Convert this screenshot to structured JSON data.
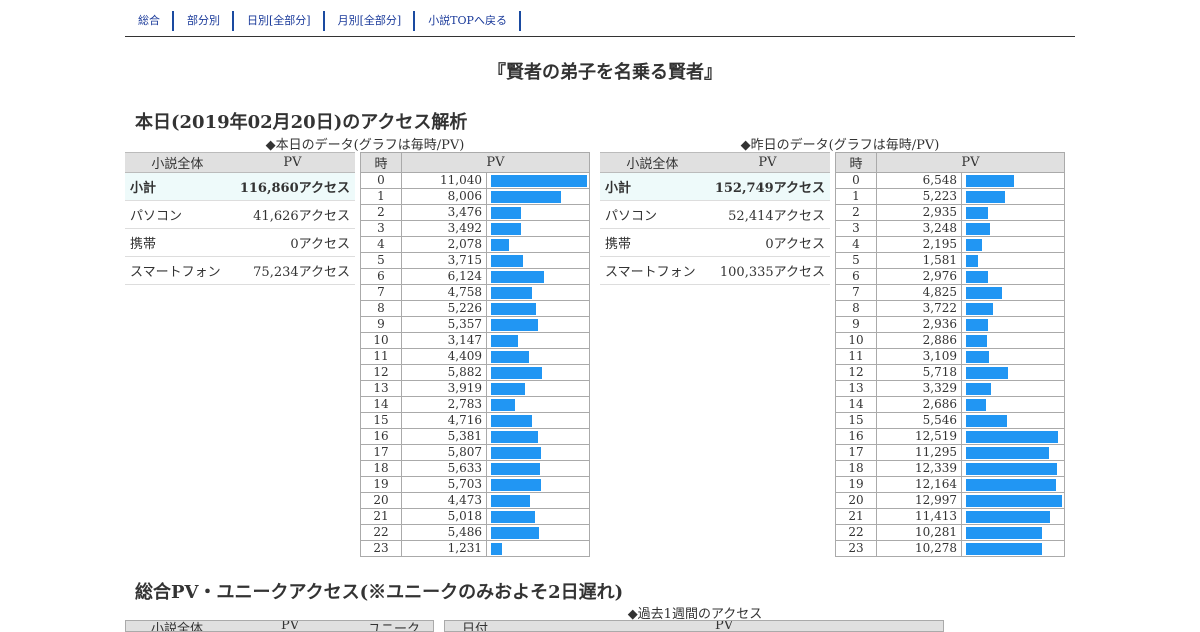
{
  "nav": [
    "総合",
    "部分別",
    "日別[全部分]",
    "月別[全部分]",
    "小説TOPへ戻る"
  ],
  "title": "『賢者の弟子を名乗る賢者』",
  "today": {
    "heading": "本日(2019年02月20日)のアクセス解析",
    "caption": "◆本日のデータ(グラフは毎時/PV)",
    "yesterday_caption": "◆昨日のデータ(グラフは毎時/PV)"
  },
  "summary_headers": [
    "小説全体",
    "PV"
  ],
  "hourly_headers": [
    "時",
    "PV"
  ],
  "today_summary": [
    {
      "label": "小計",
      "value": "116,860アクセス"
    },
    {
      "label": "パソコン",
      "value": "41,626アクセス"
    },
    {
      "label": "携帯",
      "value": "0アクセス"
    },
    {
      "label": "スマートフォン",
      "value": "75,234アクセス"
    }
  ],
  "yesterday_summary": [
    {
      "label": "小計",
      "value": "152,749アクセス"
    },
    {
      "label": "パソコン",
      "value": "52,414アクセス"
    },
    {
      "label": "携帯",
      "value": "0アクセス"
    },
    {
      "label": "スマートフォン",
      "value": "100,335アクセス"
    }
  ],
  "today_hourly": [
    11040,
    8006,
    3476,
    3492,
    2078,
    3715,
    6124,
    4758,
    5226,
    5357,
    3147,
    4409,
    5882,
    3919,
    2783,
    4716,
    5381,
    5807,
    5633,
    5703,
    4473,
    5018,
    5486,
    1231
  ],
  "yesterday_hourly": [
    6548,
    5223,
    2935,
    3248,
    2195,
    1581,
    2976,
    4825,
    3722,
    2936,
    2886,
    3109,
    5718,
    3329,
    2686,
    5546,
    12519,
    11295,
    12339,
    12164,
    12997,
    11413,
    10281,
    10278
  ],
  "totals": {
    "heading": "総合PV・ユニークアクセス(※ユニークのみおよそ2日遅れ)",
    "week_caption": "◆過去1週間のアクセス",
    "headers": [
      "小説全体",
      "PV",
      "ユニーク"
    ],
    "week_headers": [
      "日付",
      "PV"
    ]
  },
  "colors": {
    "bar": "#2196f3",
    "nav_link": "#1a3a9a",
    "subtotal_bg": "#eefafa",
    "header_bg": "#e0e0e0"
  }
}
